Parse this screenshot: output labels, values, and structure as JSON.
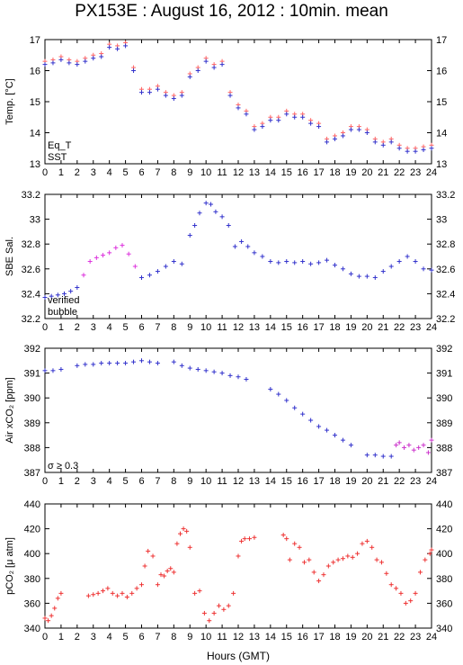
{
  "title": "PX153E : August 16, 2012 : 10min. mean",
  "xlabel": "Hours (GMT)",
  "chart_data": [
    {
      "type": "scatter",
      "ylabel": "Temp. [°C]",
      "ylim": [
        13,
        17
      ],
      "yticks": [
        13,
        14,
        15,
        16,
        17
      ],
      "xlim": [
        0,
        24
      ],
      "xticks": [
        0,
        1,
        2,
        3,
        4,
        5,
        6,
        7,
        8,
        9,
        10,
        11,
        12,
        13,
        14,
        15,
        16,
        17,
        18,
        19,
        20,
        21,
        22,
        23,
        24
      ],
      "legend": [
        {
          "label": "Eq_T",
          "color": "#cc2222"
        },
        {
          "label": "SST",
          "color": "#2222cc"
        }
      ],
      "series": [
        {
          "name": "Eq_T",
          "color": "#ff6666",
          "x": [
            0,
            0.5,
            1,
            1.5,
            2,
            2.5,
            3,
            3.5,
            4,
            4.5,
            5,
            5.5,
            6,
            6.5,
            7,
            7.5,
            8,
            8.5,
            9,
            9.5,
            10,
            10.5,
            11,
            11.5,
            12,
            12.5,
            13,
            13.5,
            14,
            14.5,
            15,
            15.5,
            16,
            16.5,
            17,
            17.5,
            18,
            18.5,
            19,
            19.5,
            20,
            20.5,
            21,
            21.5,
            22,
            22.5,
            23,
            23.5,
            24
          ],
          "y": [
            16.3,
            16.35,
            16.45,
            16.35,
            16.3,
            16.4,
            16.5,
            16.55,
            16.85,
            16.8,
            16.9,
            16.1,
            15.4,
            15.4,
            15.5,
            15.3,
            15.2,
            15.3,
            15.9,
            16.1,
            16.4,
            16.2,
            16.3,
            15.3,
            14.9,
            14.7,
            14.2,
            14.3,
            14.5,
            14.5,
            14.7,
            14.6,
            14.6,
            14.4,
            14.3,
            13.8,
            13.9,
            14.0,
            14.2,
            14.2,
            14.1,
            13.8,
            13.7,
            13.8,
            13.6,
            13.5,
            13.5,
            13.55,
            13.6
          ]
        },
        {
          "name": "SST",
          "color": "#3333cc",
          "x": [
            0,
            0.5,
            1,
            1.5,
            2,
            2.5,
            3,
            3.5,
            4,
            4.5,
            5,
            5.5,
            6,
            6.5,
            7,
            7.5,
            8,
            8.5,
            9,
            9.5,
            10,
            10.5,
            11,
            11.5,
            12,
            12.5,
            13,
            13.5,
            14,
            14.5,
            15,
            15.5,
            16,
            16.5,
            17,
            17.5,
            18,
            18.5,
            19,
            19.5,
            20,
            20.5,
            21,
            21.5,
            22,
            22.5,
            23,
            23.5,
            24
          ],
          "y": [
            16.2,
            16.25,
            16.35,
            16.25,
            16.2,
            16.3,
            16.4,
            16.45,
            16.75,
            16.7,
            16.8,
            16.0,
            15.3,
            15.3,
            15.4,
            15.2,
            15.1,
            15.2,
            15.8,
            16.0,
            16.3,
            16.1,
            16.2,
            15.2,
            14.8,
            14.6,
            14.1,
            14.2,
            14.4,
            14.4,
            14.6,
            14.5,
            14.5,
            14.3,
            14.2,
            13.7,
            13.8,
            13.9,
            14.1,
            14.1,
            14.0,
            13.7,
            13.6,
            13.7,
            13.5,
            13.4,
            13.4,
            13.45,
            13.5
          ]
        }
      ]
    },
    {
      "type": "scatter",
      "ylabel": "SBE Sal.",
      "ylim": [
        32.2,
        33.2
      ],
      "yticks": [
        32.2,
        32.4,
        32.6,
        32.8,
        33,
        33.2
      ],
      "xlim": [
        0,
        24
      ],
      "xticks": [
        0,
        1,
        2,
        3,
        4,
        5,
        6,
        7,
        8,
        9,
        10,
        11,
        12,
        13,
        14,
        15,
        16,
        17,
        18,
        19,
        20,
        21,
        22,
        23,
        24
      ],
      "legend": [
        {
          "label": "verified",
          "color": "#2222cc"
        },
        {
          "label": "bubble",
          "color": "#cc22cc"
        }
      ],
      "series": [
        {
          "name": "verified",
          "color": "#3333cc",
          "x": [
            0,
            0.4,
            0.8,
            1.2,
            1.6,
            2.0,
            6.0,
            6.5,
            7.0,
            7.5,
            8.0,
            8.5,
            9.0,
            9.3,
            9.6,
            10.0,
            10.3,
            10.6,
            11.0,
            11.4,
            11.8,
            12.2,
            12.6,
            13.0,
            13.5,
            14.0,
            14.5,
            15.0,
            15.5,
            16.0,
            16.5,
            17.0,
            17.5,
            18.0,
            18.5,
            19.0,
            19.5,
            20.0,
            20.5,
            21.0,
            21.5,
            22.0,
            22.5,
            23.0,
            23.5,
            24.0
          ],
          "y": [
            32.37,
            32.38,
            32.39,
            32.4,
            32.42,
            32.45,
            32.53,
            32.55,
            32.58,
            32.62,
            32.66,
            32.64,
            32.87,
            32.95,
            33.05,
            33.13,
            33.12,
            33.06,
            33.02,
            32.95,
            32.78,
            32.82,
            32.78,
            32.73,
            32.7,
            32.66,
            32.65,
            32.66,
            32.65,
            32.66,
            32.64,
            32.65,
            32.67,
            32.63,
            32.6,
            32.56,
            32.54,
            32.54,
            32.53,
            32.58,
            32.62,
            32.66,
            32.7,
            32.66,
            32.6,
            32.59
          ]
        },
        {
          "name": "bubble",
          "color": "#dd33dd",
          "x": [
            2.4,
            2.8,
            3.2,
            3.6,
            4.0,
            4.4,
            4.8,
            5.2,
            5.6
          ],
          "y": [
            32.55,
            32.66,
            32.69,
            32.71,
            32.73,
            32.77,
            32.79,
            32.72,
            32.62
          ]
        }
      ]
    },
    {
      "type": "scatter",
      "ylabel": "Air xCO₂ [ppm]",
      "ylim": [
        387,
        392
      ],
      "yticks": [
        387,
        388,
        389,
        390,
        391,
        392
      ],
      "xlim": [
        0,
        24
      ],
      "xticks": [
        0,
        1,
        2,
        3,
        4,
        5,
        6,
        7,
        8,
        9,
        10,
        11,
        12,
        13,
        14,
        15,
        16,
        17,
        18,
        19,
        20,
        21,
        22,
        23,
        24
      ],
      "legend": [
        {
          "label": "σ ≥ 0.3",
          "color": "#cc22cc"
        }
      ],
      "series": [
        {
          "name": "Air xCO2",
          "color": "#3333cc",
          "x": [
            0,
            0.5,
            1,
            2,
            2.5,
            3,
            3.5,
            4,
            4.5,
            5,
            5.5,
            6,
            6.5,
            7,
            8,
            8.5,
            9,
            9.5,
            10,
            10.5,
            11,
            11.5,
            12,
            12.5,
            14,
            14.5,
            15,
            15.5,
            16,
            16.5,
            17,
            17.5,
            18,
            18.5,
            19,
            20,
            20.5,
            21,
            21.5
          ],
          "y": [
            391.1,
            391.1,
            391.15,
            391.3,
            391.35,
            391.35,
            391.4,
            391.4,
            391.4,
            391.4,
            391.45,
            391.5,
            391.45,
            391.4,
            391.45,
            391.3,
            391.2,
            391.15,
            391.1,
            391.05,
            391.0,
            390.9,
            390.85,
            390.75,
            390.35,
            390.15,
            389.9,
            389.6,
            389.35,
            389.1,
            388.85,
            388.7,
            388.5,
            388.3,
            388.1,
            387.7,
            387.7,
            387.65,
            387.65
          ]
        },
        {
          "name": "σ ≥ 0.3",
          "color": "#cc33cc",
          "x": [
            21.8,
            22.0,
            22.3,
            22.6,
            22.9,
            23.2,
            23.5,
            23.8,
            24.0
          ],
          "y": [
            388.1,
            388.2,
            388.0,
            388.1,
            387.9,
            388.0,
            388.1,
            387.8,
            388.3
          ]
        }
      ]
    },
    {
      "type": "scatter",
      "ylabel": "pCO₂ [μ atm]",
      "ylim": [
        340,
        440
      ],
      "yticks": [
        340,
        360,
        380,
        400,
        420,
        440
      ],
      "xlim": [
        0,
        24
      ],
      "xticks": [
        0,
        1,
        2,
        3,
        4,
        5,
        6,
        7,
        8,
        9,
        10,
        11,
        12,
        13,
        14,
        15,
        16,
        17,
        18,
        19,
        20,
        21,
        22,
        23,
        24
      ],
      "legend": [],
      "series": [
        {
          "name": "pCO2",
          "color": "#ee3333",
          "x": [
            0,
            0.2,
            0.4,
            0.6,
            0.8,
            1.0,
            2.7,
            3.0,
            3.3,
            3.6,
            3.9,
            4.2,
            4.5,
            4.8,
            5.1,
            5.4,
            5.7,
            6.0,
            6.2,
            6.4,
            6.7,
            7.0,
            7.2,
            7.4,
            7.6,
            7.8,
            8.0,
            8.2,
            8.4,
            8.6,
            8.8,
            9.0,
            9.3,
            9.6,
            9.9,
            10.2,
            10.5,
            10.8,
            11.1,
            11.4,
            11.7,
            12.0,
            12.2,
            12.4,
            12.7,
            13.0,
            14.8,
            15.0,
            15.2,
            15.5,
            15.8,
            16.1,
            16.4,
            16.7,
            17.0,
            17.3,
            17.6,
            17.9,
            18.2,
            18.5,
            18.8,
            19.1,
            19.4,
            19.7,
            20.0,
            20.3,
            20.6,
            20.9,
            21.2,
            21.5,
            21.8,
            22.1,
            22.4,
            22.7,
            23.0,
            23.3,
            23.6,
            23.9,
            24.0
          ],
          "y": [
            348,
            346,
            350,
            356,
            364,
            368,
            366,
            367,
            368,
            370,
            372,
            368,
            366,
            368,
            365,
            368,
            372,
            375,
            390,
            402,
            398,
            375,
            383,
            382,
            386,
            388,
            385,
            408,
            416,
            420,
            418,
            405,
            368,
            370,
            352,
            346,
            352,
            358,
            355,
            358,
            368,
            398,
            410,
            412,
            412,
            413,
            415,
            412,
            395,
            408,
            405,
            393,
            395,
            385,
            378,
            383,
            390,
            393,
            395,
            396,
            398,
            397,
            400,
            408,
            410,
            405,
            395,
            393,
            384,
            375,
            372,
            368,
            360,
            362,
            368,
            385,
            395,
            400,
            403
          ]
        }
      ]
    }
  ]
}
